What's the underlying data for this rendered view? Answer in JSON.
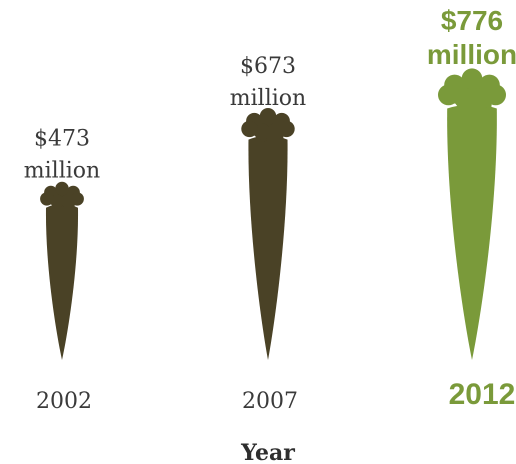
{
  "chart_data": {
    "type": "bar",
    "categories": [
      "2002",
      "2007",
      "2012"
    ],
    "values": [
      473,
      673,
      776
    ],
    "value_labels": [
      [
        "$473",
        "million"
      ],
      [
        "$673",
        "million"
      ],
      [
        "$776",
        "million"
      ]
    ],
    "xlabel": "Year",
    "ylabel": "",
    "title": "",
    "highlight_index": 2,
    "colors": {
      "normal": "#4a4226",
      "highlight": "#7a9a3a"
    },
    "icon": "carrot-icon"
  }
}
